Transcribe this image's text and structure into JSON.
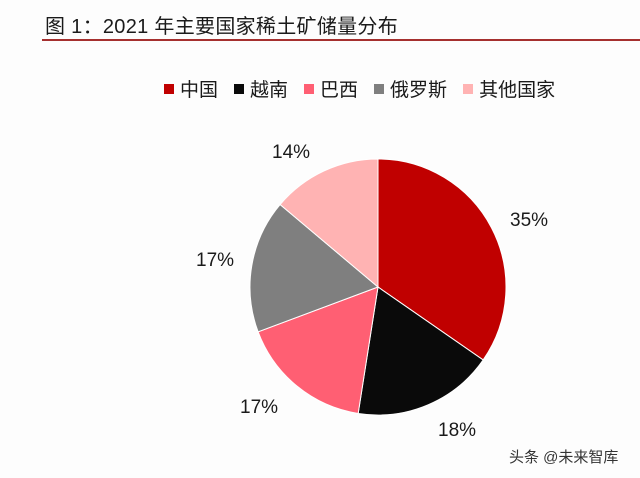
{
  "header": {
    "title": "图 1：2021 年主要国家稀土矿储量分布"
  },
  "legend": [
    {
      "label": "中国",
      "color": "#c00000"
    },
    {
      "label": "越南",
      "color": "#0a0a0a"
    },
    {
      "label": "巴西",
      "color": "#ff5f73"
    },
    {
      "label": "俄罗斯",
      "color": "#7f7f7f"
    },
    {
      "label": "其他国家",
      "color": "#ffb3b3"
    }
  ],
  "labels": [
    "35%",
    "18%",
    "17%",
    "17%",
    "14%"
  ],
  "watermark": "头条 @未来智库",
  "chart_data": {
    "type": "pie",
    "title": "图 1：2021 年主要国家稀土矿储量分布",
    "categories": [
      "中国",
      "越南",
      "巴西",
      "俄罗斯",
      "其他国家"
    ],
    "values": [
      35,
      18,
      17,
      17,
      14
    ],
    "unit": "%",
    "colors": [
      "#c00000",
      "#0a0a0a",
      "#ff5f73",
      "#7f7f7f",
      "#ffb3b3"
    ],
    "legend_position": "top",
    "start_angle": "12 o'clock, clockwise"
  }
}
